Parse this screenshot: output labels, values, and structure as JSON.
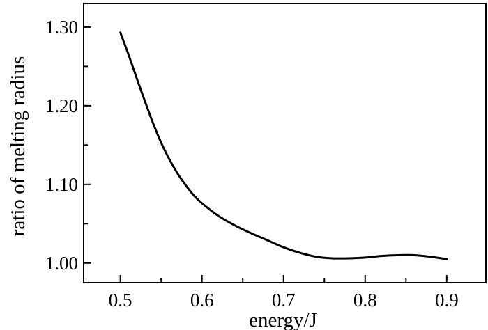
{
  "chart_data": {
    "type": "line",
    "title": "",
    "xlabel": "energy/J",
    "ylabel": "ratio of melting radius",
    "xlim": [
      0.455,
      0.948
    ],
    "ylim": [
      0.975,
      1.33
    ],
    "grid": false,
    "legend": "none",
    "xticks": [
      {
        "value": 0.5,
        "label": "0.5"
      },
      {
        "value": 0.6,
        "label": "0.6"
      },
      {
        "value": 0.7,
        "label": "0.7"
      },
      {
        "value": 0.8,
        "label": "0.8"
      },
      {
        "value": 0.9,
        "label": "0.9"
      }
    ],
    "xminor": [
      0.55,
      0.65,
      0.75,
      0.85
    ],
    "yticks": [
      {
        "value": 1.0,
        "label": "1.00"
      },
      {
        "value": 1.1,
        "label": "1.10"
      },
      {
        "value": 1.2,
        "label": "1.20"
      },
      {
        "value": 1.3,
        "label": "1.30"
      }
    ],
    "yminor": [
      1.05,
      1.15,
      1.25
    ],
    "series": [
      {
        "color": "#000000",
        "x": [
          0.5,
          0.51,
          0.52,
          0.53,
          0.54,
          0.55,
          0.56,
          0.57,
          0.58,
          0.59,
          0.6,
          0.62,
          0.64,
          0.66,
          0.68,
          0.7,
          0.72,
          0.74,
          0.76,
          0.78,
          0.8,
          0.82,
          0.84,
          0.86,
          0.88,
          0.9
        ],
        "y": [
          1.293,
          1.265,
          1.235,
          1.206,
          1.178,
          1.153,
          1.132,
          1.114,
          1.099,
          1.086,
          1.076,
          1.06,
          1.048,
          1.038,
          1.029,
          1.02,
          1.013,
          1.008,
          1.006,
          1.006,
          1.007,
          1.009,
          1.01,
          1.01,
          1.008,
          1.005
        ]
      }
    ]
  }
}
